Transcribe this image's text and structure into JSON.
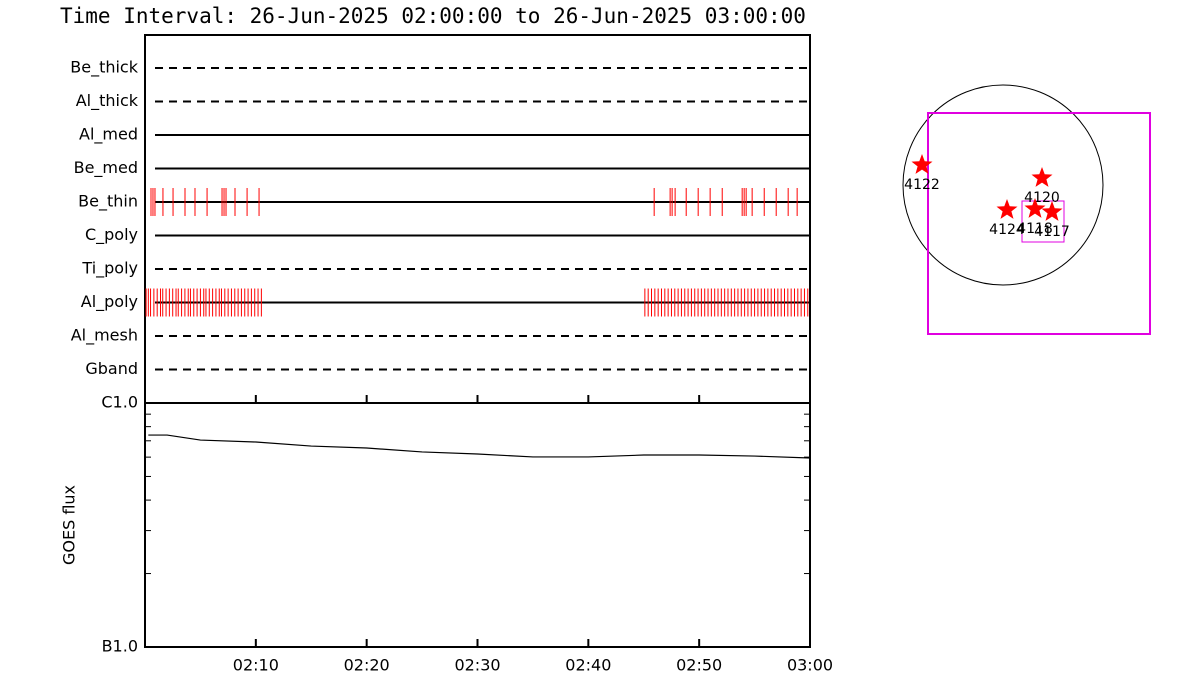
{
  "title": "Time Interval: 26-Jun-2025 02:00:00 to 26-Jun-2025 03:00:00",
  "chart_data": [
    {
      "type": "event",
      "categories": [
        "Be_thick",
        "Al_thick",
        "Al_med",
        "Be_med",
        "Be_thin",
        "C_poly",
        "Ti_poly",
        "Al_poly",
        "Al_mesh",
        "Gband"
      ],
      "line_styles": [
        "dashed",
        "dashed",
        "solid",
        "solid",
        "solid",
        "solid",
        "dashed",
        "solid",
        "dashed",
        "dashed"
      ],
      "color": "#ff0000",
      "xlim": [
        0,
        60
      ],
      "events": [
        [],
        [],
        [],
        [],
        [
          0.54,
          0.72,
          0.9,
          1.62,
          2.53,
          3.61,
          4.51,
          5.6,
          6.95,
          7.13,
          7.31,
          8.12,
          9.21,
          10.29,
          45.94,
          47.38,
          47.56,
          47.83,
          48.83,
          49.91,
          50.99,
          52.08,
          53.88,
          54.06,
          54.24,
          54.78,
          55.87,
          56.95,
          58.03,
          58.84
        ],
        [],
        [],
        [
          0.1,
          0.3,
          0.5,
          0.8,
          1.1,
          1.4,
          1.6,
          1.9,
          2.2,
          2.5,
          2.8,
          3.0,
          3.3,
          3.6,
          3.9,
          4.1,
          4.4,
          4.7,
          5.0,
          5.3,
          5.5,
          5.8,
          6.1,
          6.4,
          6.7,
          6.9,
          7.2,
          7.5,
          7.8,
          8.1,
          8.4,
          8.7,
          9.0,
          9.3,
          9.6,
          9.9,
          10.2,
          10.5,
          45.1,
          45.4,
          45.7,
          46.0,
          46.3,
          46.6,
          46.9,
          47.2,
          47.5,
          47.8,
          48.1,
          48.4,
          48.7,
          49.0,
          49.3,
          49.6,
          49.9,
          50.2,
          50.5,
          50.8,
          51.1,
          51.4,
          51.7,
          52.0,
          52.3,
          52.6,
          52.9,
          53.2,
          53.5,
          53.8,
          54.1,
          54.4,
          54.7,
          55.0,
          55.3,
          55.6,
          55.9,
          56.2,
          56.5,
          56.8,
          57.1,
          57.4,
          57.7,
          58.0,
          58.3,
          58.6,
          58.9,
          59.2,
          59.5,
          59.8
        ],
        [],
        []
      ]
    },
    {
      "type": "line",
      "ylabel": "GOES flux",
      "color": "#000000",
      "log_scale": true,
      "x": [
        0.3,
        2,
        5,
        10,
        15,
        20,
        25,
        30,
        35,
        40,
        45,
        50,
        55,
        60
      ],
      "values": [
        7.39e-07,
        7.39e-07,
        7.05e-07,
        6.92e-07,
        6.66e-07,
        6.54e-07,
        6.3e-07,
        6.18e-07,
        6.01e-07,
        6.01e-07,
        6.12e-07,
        6.12e-07,
        6.06e-07,
        5.95e-07
      ],
      "xlim": [
        0,
        60
      ],
      "xticks": [
        {
          "value": 10,
          "label": "02:10"
        },
        {
          "value": 20,
          "label": "02:20"
        },
        {
          "value": 30,
          "label": "02:30"
        },
        {
          "value": 40,
          "label": "02:40"
        },
        {
          "value": 50,
          "label": "02:50"
        },
        {
          "value": 60,
          "label": "03:00"
        }
      ],
      "ylim": [
        1e-07,
        1e-06
      ],
      "yticks": [
        {
          "value": 1e-06,
          "label": "C1.0"
        },
        {
          "value": 1e-07,
          "label": "B1.0"
        }
      ],
      "minor_yticks": [
        2e-07,
        3e-07,
        4e-07,
        5e-07,
        6e-07,
        7e-07,
        8e-07,
        9e-07
      ]
    }
  ],
  "sun_map": {
    "regions": [
      "4122",
      "4120",
      "4124",
      "4118",
      "4117"
    ]
  }
}
